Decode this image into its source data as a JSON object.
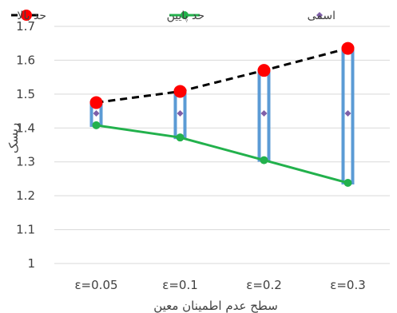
{
  "chart_data": {
    "type": "line",
    "categories": [
      "ε=0.05",
      "ε=0.1",
      "ε=0.2",
      "ε=0.3"
    ],
    "xlabel": "سطح عدم اطمینان معین",
    "ylabel": "ریسک",
    "ylim": [
      1,
      1.7
    ],
    "yticks": [
      1,
      1.1,
      1.2,
      1.3,
      1.4,
      1.5,
      1.6,
      1.7
    ],
    "grid": true,
    "legend_position": "top",
    "series": [
      {
        "name": "حد بالا",
        "values": [
          1.475,
          1.508,
          1.57,
          1.635
        ],
        "color": "#ff0000",
        "line_color": "#000000",
        "dash": true
      },
      {
        "name": "حد پایین",
        "values": [
          1.408,
          1.372,
          1.305,
          1.238
        ],
        "color": "#22b14c",
        "line_color": "#22b14c",
        "dash": false
      },
      {
        "name": "اسمی",
        "values": [
          1.443,
          1.443,
          1.443,
          1.443
        ],
        "color": "#7f5fa8",
        "marker": "diamond"
      }
    ],
    "range_bar_color": "#5b9bd5"
  }
}
